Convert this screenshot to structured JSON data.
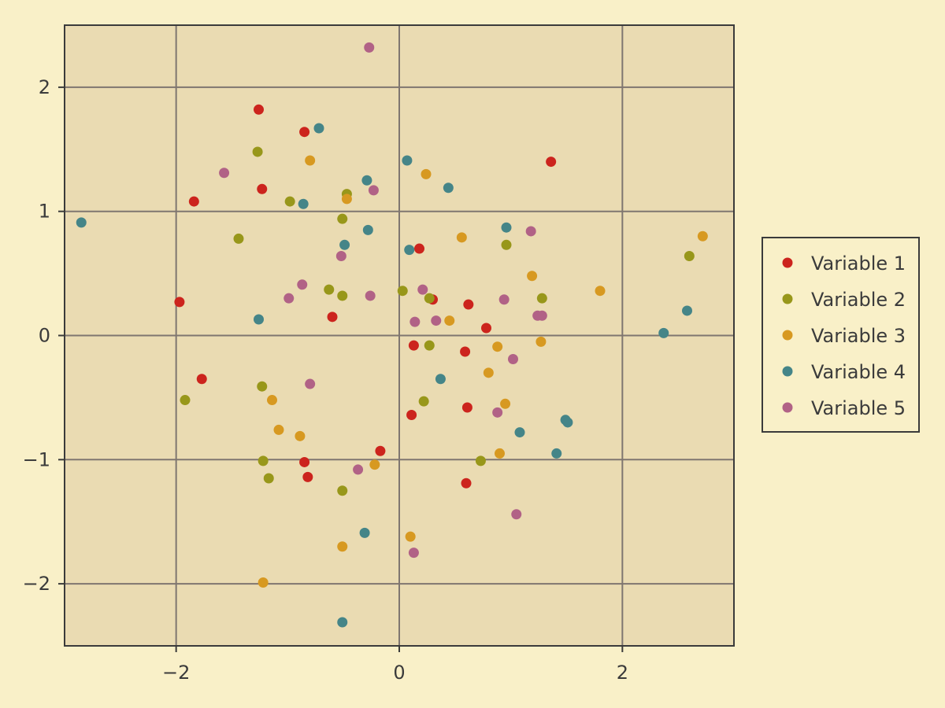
{
  "chart_data": {
    "type": "scatter",
    "title": "",
    "xlabel": "",
    "ylabel": "",
    "xlim": [
      -3.0,
      3.0
    ],
    "ylim": [
      -2.5,
      2.5
    ],
    "x_ticks": [
      -2,
      0,
      2
    ],
    "x_tick_labels": [
      "−2",
      "0",
      "2"
    ],
    "y_ticks": [
      -2,
      -1,
      0,
      1,
      2
    ],
    "y_tick_labels": [
      "−2",
      "−1",
      "0",
      "1",
      "2"
    ],
    "grid": true,
    "legend_position": "right",
    "colors": {
      "page_background": "#f9f0c8",
      "plot_background": "#eadbb2",
      "grid": "#7f7670",
      "frame": "#3b3b3b"
    },
    "series": [
      {
        "name": "Variable 1",
        "color": "#cc241d",
        "points": [
          [
            -1.26,
            1.82
          ],
          [
            -0.85,
            1.64
          ],
          [
            1.36,
            1.4
          ],
          [
            -1.23,
            1.18
          ],
          [
            -1.84,
            1.08
          ],
          [
            0.18,
            0.7
          ],
          [
            -1.97,
            0.27
          ],
          [
            0.3,
            0.29
          ],
          [
            0.62,
            0.25
          ],
          [
            -0.6,
            0.15
          ],
          [
            0.78,
            0.06
          ],
          [
            0.13,
            -0.08
          ],
          [
            0.59,
            -0.13
          ],
          [
            -1.77,
            -0.35
          ],
          [
            0.61,
            -0.58
          ],
          [
            0.11,
            -0.64
          ],
          [
            -0.17,
            -0.93
          ],
          [
            -0.85,
            -1.02
          ],
          [
            -0.82,
            -1.14
          ],
          [
            0.6,
            -1.19
          ]
        ]
      },
      {
        "name": "Variable 2",
        "color": "#98971a",
        "points": [
          [
            -1.27,
            1.48
          ],
          [
            -0.47,
            1.14
          ],
          [
            -0.98,
            1.08
          ],
          [
            -0.51,
            0.94
          ],
          [
            -1.44,
            0.78
          ],
          [
            2.6,
            0.64
          ],
          [
            0.96,
            0.73
          ],
          [
            -0.63,
            0.37
          ],
          [
            -0.51,
            0.32
          ],
          [
            0.03,
            0.36
          ],
          [
            0.27,
            0.3
          ],
          [
            1.28,
            0.3
          ],
          [
            0.27,
            -0.08
          ],
          [
            -1.92,
            -0.52
          ],
          [
            -1.23,
            -0.41
          ],
          [
            0.22,
            -0.53
          ],
          [
            -1.22,
            -1.01
          ],
          [
            0.73,
            -1.01
          ],
          [
            -1.17,
            -1.15
          ],
          [
            -0.51,
            -1.25
          ]
        ]
      },
      {
        "name": "Variable 3",
        "color": "#d79921",
        "points": [
          [
            -0.8,
            1.41
          ],
          [
            0.24,
            1.3
          ],
          [
            -0.47,
            1.1
          ],
          [
            2.72,
            0.8
          ],
          [
            0.56,
            0.79
          ],
          [
            1.19,
            0.48
          ],
          [
            1.8,
            0.36
          ],
          [
            0.45,
            0.12
          ],
          [
            1.27,
            -0.05
          ],
          [
            0.88,
            -0.09
          ],
          [
            0.8,
            -0.3
          ],
          [
            -1.14,
            -0.52
          ],
          [
            0.95,
            -0.55
          ],
          [
            -1.08,
            -0.76
          ],
          [
            -0.89,
            -0.81
          ],
          [
            0.9,
            -0.95
          ],
          [
            -0.22,
            -1.04
          ],
          [
            0.1,
            -1.62
          ],
          [
            -0.51,
            -1.7
          ],
          [
            -1.22,
            -1.99
          ]
        ]
      },
      {
        "name": "Variable 4",
        "color": "#458588",
        "points": [
          [
            -0.72,
            1.67
          ],
          [
            0.07,
            1.41
          ],
          [
            -0.29,
            1.25
          ],
          [
            0.44,
            1.19
          ],
          [
            -0.86,
            1.06
          ],
          [
            -2.85,
            0.91
          ],
          [
            0.96,
            0.87
          ],
          [
            -0.28,
            0.85
          ],
          [
            -0.49,
            0.73
          ],
          [
            0.09,
            0.69
          ],
          [
            -1.26,
            0.13
          ],
          [
            2.58,
            0.2
          ],
          [
            2.37,
            0.02
          ],
          [
            0.37,
            -0.35
          ],
          [
            1.49,
            -0.68
          ],
          [
            1.51,
            -0.7
          ],
          [
            1.08,
            -0.78
          ],
          [
            1.41,
            -0.95
          ],
          [
            -0.31,
            -1.59
          ],
          [
            -0.51,
            -2.31
          ]
        ]
      },
      {
        "name": "Variable 5",
        "color": "#b16286",
        "points": [
          [
            -0.27,
            2.32
          ],
          [
            -1.57,
            1.31
          ],
          [
            -0.23,
            1.17
          ],
          [
            1.18,
            0.84
          ],
          [
            -0.52,
            0.64
          ],
          [
            -0.87,
            0.41
          ],
          [
            0.21,
            0.37
          ],
          [
            -0.99,
            0.3
          ],
          [
            -0.26,
            0.32
          ],
          [
            0.94,
            0.29
          ],
          [
            0.14,
            0.11
          ],
          [
            0.33,
            0.12
          ],
          [
            1.24,
            0.16
          ],
          [
            1.28,
            0.16
          ],
          [
            1.02,
            -0.19
          ],
          [
            -0.8,
            -0.39
          ],
          [
            0.88,
            -0.62
          ],
          [
            -0.37,
            -1.08
          ],
          [
            1.05,
            -1.44
          ],
          [
            0.13,
            -1.75
          ]
        ]
      }
    ]
  }
}
